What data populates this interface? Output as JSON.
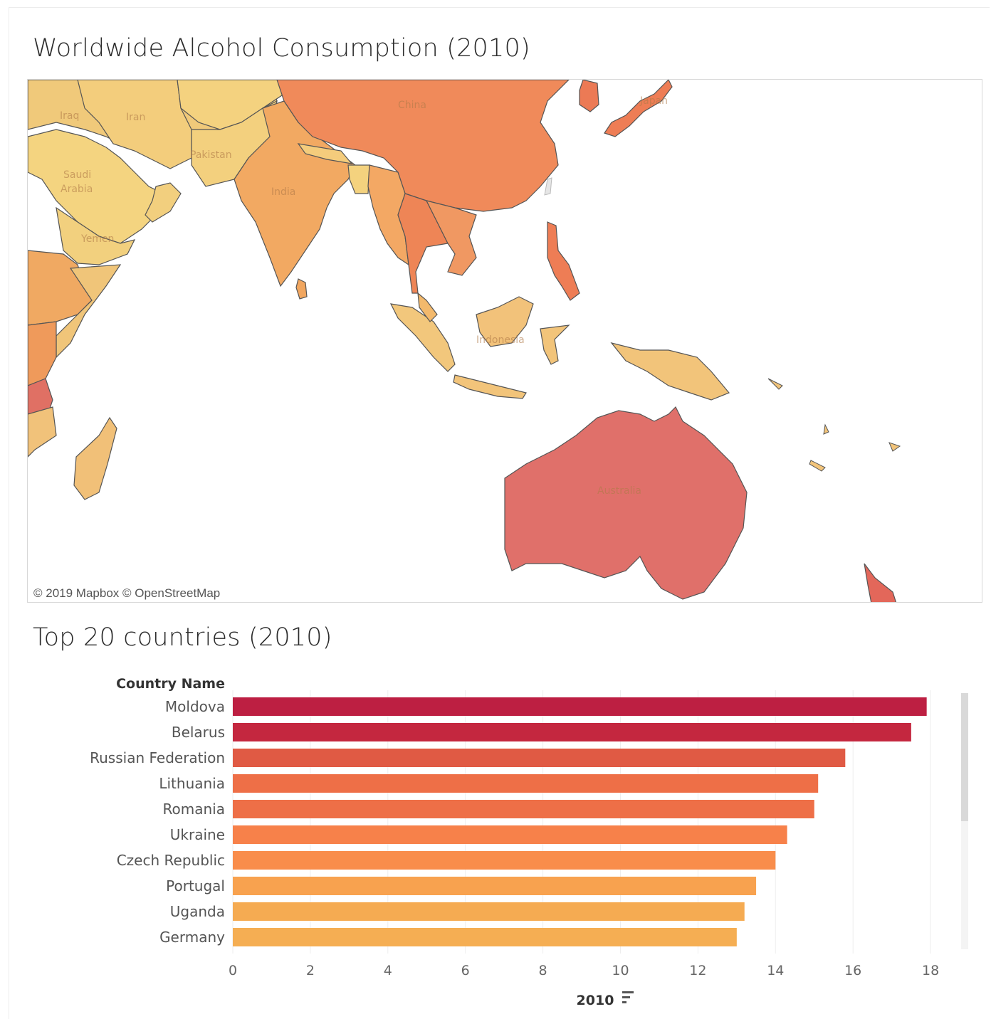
{
  "map": {
    "title": "Worldwide Alcohol Consumption (2010)",
    "attribution": "© 2019 Mapbox  © OpenStreetMap",
    "labels": [
      "Iraq",
      "Iran",
      "China",
      "Japan",
      "Pakistan",
      "Saudi",
      "Arabia",
      "India",
      "Yemen",
      "Indonesia",
      "Australia"
    ]
  },
  "bar_section": {
    "title": "Top 20 countries (2010)",
    "sort_icon": "sort-descending-icon"
  },
  "chart_data": {
    "type": "bar",
    "orientation": "horizontal",
    "title": "Top 20 countries (2010)",
    "category_header": "Country Name",
    "xlabel": "2010",
    "categories": [
      "Moldova",
      "Belarus",
      "Russian Federation",
      "Lithuania",
      "Romania",
      "Ukraine",
      "Czech Republic",
      "Portugal",
      "Uganda",
      "Germany"
    ],
    "values": [
      17.9,
      17.5,
      15.8,
      15.1,
      15.0,
      14.3,
      14.0,
      13.5,
      13.2,
      13.0
    ],
    "xlim": [
      0,
      19
    ],
    "xticks": [
      0,
      2,
      4,
      6,
      8,
      10,
      12,
      14,
      16,
      18
    ],
    "grid": true,
    "colors": [
      "#bd1f42",
      "#c4273f",
      "#e05a44",
      "#ee6f47",
      "#ee6f47",
      "#f7814a",
      "#f98d4b",
      "#f8a24f",
      "#f5ab52",
      "#f5ae53"
    ]
  }
}
